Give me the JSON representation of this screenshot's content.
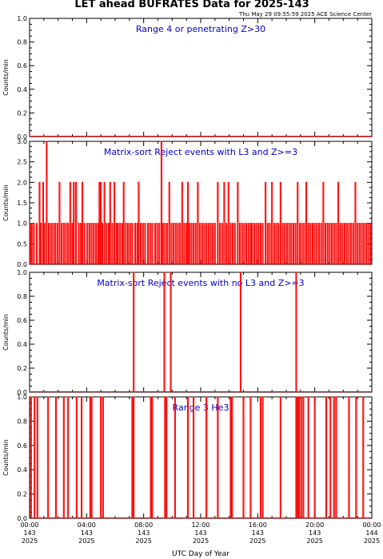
{
  "header": {
    "title": "LET ahead BUFRATES Data for 2025-143",
    "timestamp": "Thu May 29 09:55:59 2025 ACE Science Center"
  },
  "x_axis": {
    "label": "UTC Day of Year",
    "range_hours": [
      0,
      24
    ],
    "ticks": [
      {
        "hour": 0,
        "time": "00:00",
        "doy": "143",
        "year": "2025"
      },
      {
        "hour": 4,
        "time": "04:00",
        "doy": "143",
        "year": "2025"
      },
      {
        "hour": 8,
        "time": "08:00",
        "doy": "143",
        "year": "2025"
      },
      {
        "hour": 12,
        "time": "12:00",
        "doy": "143",
        "year": "2025"
      },
      {
        "hour": 16,
        "time": "16:00",
        "doy": "143",
        "year": "2025"
      },
      {
        "hour": 20,
        "time": "20:00",
        "doy": "143",
        "year": "2025"
      },
      {
        "hour": 24,
        "time": "00:00",
        "doy": "144",
        "year": "2025"
      }
    ]
  },
  "colors": {
    "data": "#ff0000",
    "annotation": "#0000cc",
    "axes": "#000000",
    "background": "#ffffff"
  },
  "chart_data": [
    {
      "type": "line",
      "annotation": "Range 4 or  penetrating Z>30",
      "ylabel": "Counts/min",
      "ylim": [
        0,
        1
      ],
      "yticks": [
        "0.0",
        "0.2",
        "0.4",
        "0.6",
        "0.8",
        "1.0"
      ],
      "x_unit": "hour",
      "events": []
    },
    {
      "type": "line",
      "annotation": "Matrix-sort Reject events with L3 and Z>=3",
      "ylabel": "Counts/min",
      "ylim": [
        0,
        3
      ],
      "yticks": [
        "0.0",
        "0.5",
        "1.0",
        "1.5",
        "2.0",
        "2.5",
        "3.0"
      ],
      "x_unit": "hour",
      "events": [
        [
          0.05,
          1
        ],
        [
          0.15,
          1
        ],
        [
          0.3,
          1
        ],
        [
          0.5,
          1
        ],
        [
          0.7,
          2
        ],
        [
          0.8,
          1
        ],
        [
          0.95,
          2
        ],
        [
          1.05,
          1
        ],
        [
          1.2,
          3
        ],
        [
          1.35,
          1
        ],
        [
          1.5,
          1
        ],
        [
          1.65,
          1
        ],
        [
          1.8,
          1
        ],
        [
          1.95,
          1
        ],
        [
          2.1,
          2
        ],
        [
          2.25,
          1
        ],
        [
          2.4,
          1
        ],
        [
          2.55,
          1
        ],
        [
          2.7,
          1
        ],
        [
          2.85,
          2
        ],
        [
          3.0,
          1
        ],
        [
          3.1,
          2
        ],
        [
          3.25,
          2
        ],
        [
          3.45,
          1
        ],
        [
          3.6,
          1
        ],
        [
          3.7,
          2
        ],
        [
          3.85,
          1
        ],
        [
          4.05,
          1
        ],
        [
          4.2,
          1
        ],
        [
          4.35,
          1
        ],
        [
          4.5,
          1
        ],
        [
          4.65,
          1
        ],
        [
          4.8,
          1
        ],
        [
          4.9,
          2
        ],
        [
          5.0,
          2
        ],
        [
          5.1,
          1
        ],
        [
          5.25,
          2
        ],
        [
          5.4,
          1
        ],
        [
          5.55,
          1
        ],
        [
          5.65,
          2
        ],
        [
          5.8,
          1
        ],
        [
          5.95,
          2
        ],
        [
          6.1,
          1
        ],
        [
          6.2,
          1
        ],
        [
          6.35,
          1
        ],
        [
          6.5,
          1
        ],
        [
          6.6,
          2
        ],
        [
          6.75,
          1
        ],
        [
          6.9,
          1
        ],
        [
          7.05,
          1
        ],
        [
          7.2,
          1
        ],
        [
          7.4,
          1
        ],
        [
          7.55,
          1
        ],
        [
          7.65,
          2
        ],
        [
          7.8,
          1
        ],
        [
          7.95,
          1
        ],
        [
          8.1,
          1
        ],
        [
          8.3,
          1
        ],
        [
          8.45,
          1
        ],
        [
          8.6,
          1
        ],
        [
          8.8,
          1
        ],
        [
          8.95,
          1
        ],
        [
          9.1,
          1
        ],
        [
          9.25,
          3
        ],
        [
          9.35,
          1
        ],
        [
          9.5,
          1
        ],
        [
          9.65,
          1
        ],
        [
          9.8,
          2
        ],
        [
          9.95,
          1
        ],
        [
          10.1,
          1
        ],
        [
          10.25,
          1
        ],
        [
          10.4,
          1
        ],
        [
          10.55,
          1
        ],
        [
          10.7,
          2
        ],
        [
          10.85,
          1
        ],
        [
          11.0,
          1
        ],
        [
          11.1,
          2
        ],
        [
          11.2,
          1
        ],
        [
          11.35,
          1
        ],
        [
          11.5,
          1
        ],
        [
          11.65,
          1
        ],
        [
          11.8,
          2
        ],
        [
          11.95,
          1
        ],
        [
          12.1,
          1
        ],
        [
          12.25,
          1
        ],
        [
          12.4,
          1
        ],
        [
          12.55,
          1
        ],
        [
          12.7,
          1
        ],
        [
          12.85,
          1
        ],
        [
          13.0,
          1
        ],
        [
          13.2,
          2
        ],
        [
          13.35,
          1
        ],
        [
          13.5,
          1
        ],
        [
          13.65,
          2
        ],
        [
          13.8,
          1
        ],
        [
          13.95,
          2
        ],
        [
          14.1,
          1
        ],
        [
          14.25,
          1
        ],
        [
          14.4,
          1
        ],
        [
          14.6,
          2
        ],
        [
          14.75,
          1
        ],
        [
          14.9,
          1
        ],
        [
          15.05,
          1
        ],
        [
          15.2,
          1
        ],
        [
          15.35,
          1
        ],
        [
          15.5,
          1
        ],
        [
          15.6,
          1
        ],
        [
          15.75,
          1
        ],
        [
          15.9,
          1
        ],
        [
          16.05,
          1
        ],
        [
          16.2,
          1
        ],
        [
          16.35,
          1
        ],
        [
          16.55,
          2
        ],
        [
          16.7,
          1
        ],
        [
          16.85,
          1
        ],
        [
          17.0,
          2
        ],
        [
          17.15,
          1
        ],
        [
          17.3,
          1
        ],
        [
          17.45,
          1
        ],
        [
          17.6,
          2
        ],
        [
          17.75,
          1
        ],
        [
          17.9,
          1
        ],
        [
          18.05,
          1
        ],
        [
          18.2,
          1
        ],
        [
          18.35,
          1
        ],
        [
          18.5,
          1
        ],
        [
          18.65,
          1
        ],
        [
          18.8,
          2
        ],
        [
          18.95,
          1
        ],
        [
          19.1,
          1
        ],
        [
          19.25,
          1
        ],
        [
          19.4,
          2
        ],
        [
          19.55,
          1
        ],
        [
          19.7,
          1
        ],
        [
          19.85,
          1
        ],
        [
          20.0,
          1
        ],
        [
          20.15,
          1
        ],
        [
          20.3,
          1
        ],
        [
          20.45,
          1
        ],
        [
          20.6,
          2
        ],
        [
          20.75,
          1
        ],
        [
          20.9,
          1
        ],
        [
          21.05,
          1
        ],
        [
          21.2,
          1
        ],
        [
          21.35,
          1
        ],
        [
          21.5,
          1
        ],
        [
          21.65,
          2
        ],
        [
          21.8,
          1
        ],
        [
          21.95,
          1
        ],
        [
          22.1,
          1
        ],
        [
          22.25,
          1
        ],
        [
          22.4,
          1
        ],
        [
          22.55,
          1
        ],
        [
          22.7,
          1
        ],
        [
          22.85,
          2
        ],
        [
          23.0,
          1
        ],
        [
          23.15,
          1
        ],
        [
          23.3,
          1
        ],
        [
          23.45,
          1
        ],
        [
          23.6,
          1
        ],
        [
          23.75,
          1
        ],
        [
          23.9,
          1
        ]
      ]
    },
    {
      "type": "line",
      "annotation": "Matrix-sort Reject events with no L3 and Z>=3",
      "ylabel": "Counts/min",
      "ylim": [
        0,
        1
      ],
      "yticks": [
        "0.0",
        "0.2",
        "0.4",
        "0.6",
        "0.8",
        "1.0"
      ],
      "x_unit": "hour",
      "events": [
        [
          7.3,
          1
        ],
        [
          9.45,
          1
        ],
        [
          9.9,
          1
        ],
        [
          14.8,
          1
        ],
        [
          18.7,
          1
        ]
      ]
    },
    {
      "type": "line",
      "annotation": "Range 3 He3",
      "ylabel": "Counts/min",
      "ylim": [
        0,
        1
      ],
      "yticks": [
        "0.0",
        "0.2",
        "0.4",
        "0.6",
        "0.8",
        "1.0"
      ],
      "x_unit": "hour",
      "events": [
        [
          0.1,
          1
        ],
        [
          0.35,
          1
        ],
        [
          0.55,
          1
        ],
        [
          1.3,
          1
        ],
        [
          1.85,
          1
        ],
        [
          2.4,
          1
        ],
        [
          2.7,
          1
        ],
        [
          3.3,
          1
        ],
        [
          3.65,
          1
        ],
        [
          4.25,
          1
        ],
        [
          4.35,
          1
        ],
        [
          5.0,
          1
        ],
        [
          5.15,
          1
        ],
        [
          7.2,
          1
        ],
        [
          7.3,
          1
        ],
        [
          8.5,
          1
        ],
        [
          8.6,
          1
        ],
        [
          9.5,
          1
        ],
        [
          9.6,
          1
        ],
        [
          10.2,
          1
        ],
        [
          11.1,
          1
        ],
        [
          11.5,
          1
        ],
        [
          12.4,
          1
        ],
        [
          13.2,
          1
        ],
        [
          14.1,
          1
        ],
        [
          14.2,
          1
        ],
        [
          15.0,
          1
        ],
        [
          15.5,
          1
        ],
        [
          16.2,
          1
        ],
        [
          16.35,
          1
        ],
        [
          17.6,
          1
        ],
        [
          18.7,
          1
        ],
        [
          18.8,
          1
        ],
        [
          18.9,
          1
        ],
        [
          19.05,
          1
        ],
        [
          19.2,
          1
        ],
        [
          19.55,
          1
        ],
        [
          20.0,
          1
        ],
        [
          20.8,
          1
        ],
        [
          21.1,
          1
        ],
        [
          21.35,
          1
        ],
        [
          21.5,
          1
        ],
        [
          22.4,
          1
        ],
        [
          22.9,
          1
        ],
        [
          23.4,
          1
        ]
      ]
    }
  ]
}
